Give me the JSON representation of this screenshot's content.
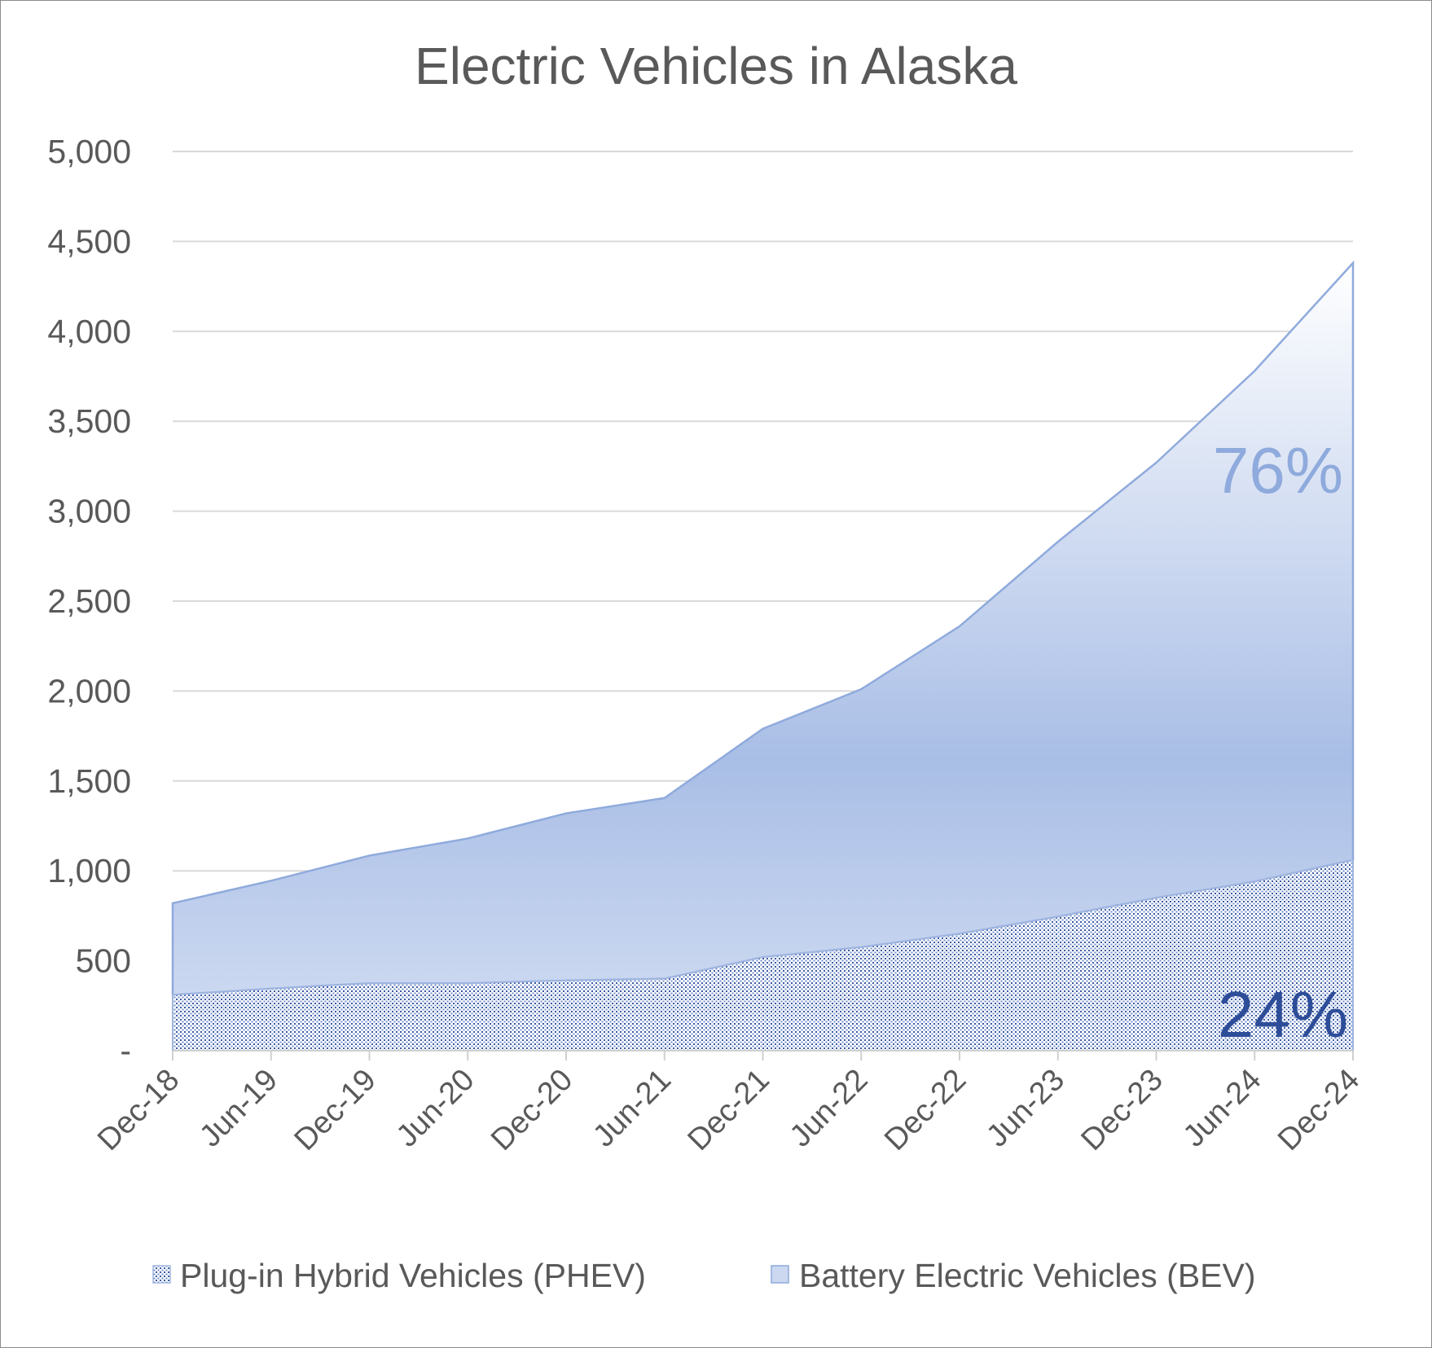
{
  "chart_data": {
    "type": "area",
    "stacked": true,
    "title": "Electric Vehicles in Alaska",
    "xlabel": "",
    "ylabel": "",
    "categories": [
      "Dec-18",
      "Jun-19",
      "Dec-19",
      "Jun-20",
      "Dec-20",
      "Jun-21",
      "Dec-21",
      "Jun-22",
      "Dec-22",
      "Jun-23",
      "Dec-23",
      "Jun-24",
      "Dec-24"
    ],
    "ylim": [
      0,
      5000
    ],
    "yticks": [
      0,
      500,
      1000,
      1500,
      2000,
      2500,
      3000,
      3500,
      4000,
      4500,
      5000
    ],
    "ytick_labels": [
      "-",
      "500",
      "1,000",
      "1,500",
      "2,000",
      "2,500",
      "3,000",
      "3,500",
      "4,000",
      "4,500",
      "5,000"
    ],
    "grid": true,
    "legend_position": "bottom",
    "series": [
      {
        "name": "Plug-in Hybrid Vehicles (PHEV)",
        "values": [
          310,
          345,
          375,
          375,
          390,
          400,
          520,
          575,
          650,
          745,
          850,
          940,
          1060
        ],
        "color": "#2e4d99",
        "fill": "dotted"
      },
      {
        "name": "Battery Electric Vehicles (BEV)",
        "values": [
          510,
          600,
          710,
          805,
          930,
          1005,
          1270,
          1435,
          1710,
          2085,
          2420,
          2840,
          3320
        ],
        "color": "#8faadc",
        "fill": "gradient"
      }
    ],
    "annotations": [
      {
        "text": "76%",
        "series": "Battery Electric Vehicles (BEV)",
        "color": "#8faadc"
      },
      {
        "text": "24%",
        "series": "Plug-in Hybrid Vehicles (PHEV)",
        "color": "#2e4d99"
      }
    ]
  }
}
